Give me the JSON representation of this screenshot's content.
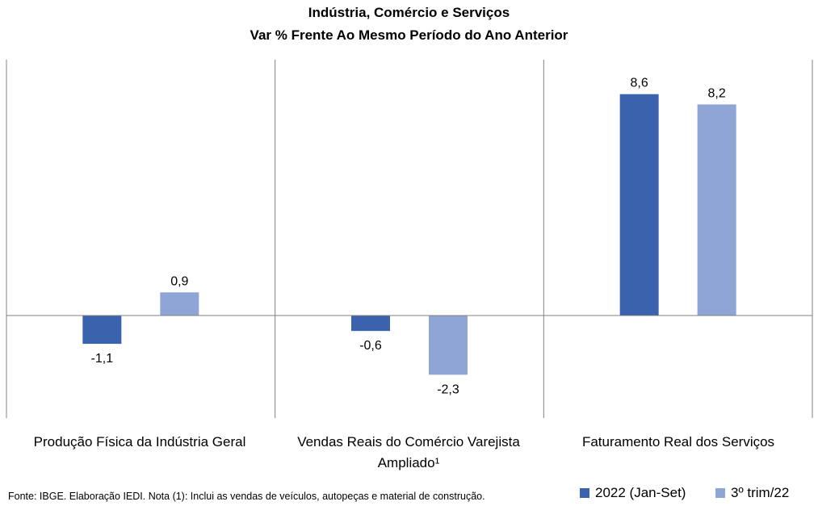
{
  "chart_data": {
    "type": "bar",
    "title": "Indústria, Comércio e Serviços",
    "subtitle": "Var % Frente Ao Mesmo Período do Ano Anterior",
    "categories": [
      "Produção Física da Indústria Geral",
      "Vendas Reais do Comércio Varejista Ampliado¹",
      "Faturamento Real dos Serviços"
    ],
    "category_lines": [
      [
        "Produção Física da Indústria Geral"
      ],
      [
        "Vendas Reais do Comércio Varejista",
        "Ampliado¹"
      ],
      [
        "Faturamento Real dos Serviços"
      ]
    ],
    "series": [
      {
        "name": "2022 (Jan-Set)",
        "values": [
          -1.1,
          -0.6,
          8.6
        ],
        "labels": [
          "-1,1",
          "-0,6",
          "8,6"
        ],
        "color": "#3b63ad"
      },
      {
        "name": "3º trim/22",
        "values": [
          0.9,
          -2.3,
          8.2
        ],
        "labels": [
          "0,9",
          "-2,3",
          "8,2"
        ],
        "color": "#8ea5d6"
      }
    ],
    "legend_position": "bottom-right",
    "grid": false
  },
  "footnote": "Fonte: IBGE. Elaboração IEDI. Nota (1): Inclui as vendas de veículos, autopeças e material de construção.",
  "colors": {
    "series1": "#3b63ad",
    "series2": "#8ea5d6",
    "axis": "#808080"
  }
}
